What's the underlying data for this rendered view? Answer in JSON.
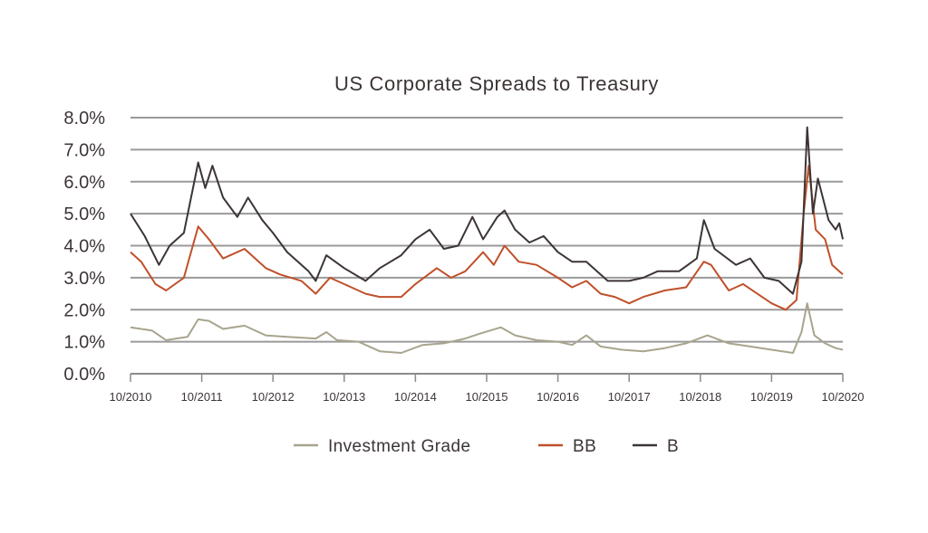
{
  "chart_data": {
    "type": "line",
    "title": "US Corporate Spreads to Treasury",
    "xlabel": "",
    "ylabel": "",
    "x_range": [
      "10/2010",
      "10/2020"
    ],
    "ylim": [
      0,
      8
    ],
    "y_ticks": [
      "0.0%",
      "1.0%",
      "2.0%",
      "3.0%",
      "4.0%",
      "5.0%",
      "6.0%",
      "7.0%",
      "8.0%"
    ],
    "x_ticks": [
      "10/2010",
      "10/2011",
      "10/2012",
      "10/2013",
      "10/2014",
      "10/2015",
      "10/2016",
      "10/2017",
      "10/2018",
      "10/2019",
      "10/2020"
    ],
    "grid": true,
    "legend_position": "bottom",
    "series": [
      {
        "name": "Investment Grade",
        "color": "#a8a58d",
        "points": [
          [
            0.0,
            1.45
          ],
          [
            0.3,
            1.35
          ],
          [
            0.5,
            1.05
          ],
          [
            0.8,
            1.15
          ],
          [
            0.95,
            1.7
          ],
          [
            1.1,
            1.65
          ],
          [
            1.3,
            1.4
          ],
          [
            1.6,
            1.5
          ],
          [
            1.9,
            1.2
          ],
          [
            2.2,
            1.15
          ],
          [
            2.6,
            1.1
          ],
          [
            2.75,
            1.3
          ],
          [
            2.9,
            1.05
          ],
          [
            3.2,
            1.0
          ],
          [
            3.5,
            0.7
          ],
          [
            3.8,
            0.65
          ],
          [
            4.1,
            0.9
          ],
          [
            4.4,
            0.95
          ],
          [
            4.7,
            1.1
          ],
          [
            4.9,
            1.25
          ],
          [
            5.2,
            1.45
          ],
          [
            5.4,
            1.2
          ],
          [
            5.7,
            1.05
          ],
          [
            6.0,
            1.0
          ],
          [
            6.2,
            0.9
          ],
          [
            6.4,
            1.2
          ],
          [
            6.6,
            0.85
          ],
          [
            6.9,
            0.75
          ],
          [
            7.2,
            0.7
          ],
          [
            7.5,
            0.8
          ],
          [
            7.8,
            0.95
          ],
          [
            8.1,
            1.2
          ],
          [
            8.4,
            0.95
          ],
          [
            8.7,
            0.85
          ],
          [
            9.0,
            0.75
          ],
          [
            9.3,
            0.65
          ],
          [
            9.42,
            1.3
          ],
          [
            9.5,
            2.2
          ],
          [
            9.6,
            1.2
          ],
          [
            9.75,
            0.95
          ],
          [
            9.9,
            0.8
          ],
          [
            10.0,
            0.75
          ]
        ]
      },
      {
        "name": "BB",
        "color": "#c0502a",
        "points": [
          [
            0.0,
            3.8
          ],
          [
            0.15,
            3.5
          ],
          [
            0.35,
            2.8
          ],
          [
            0.5,
            2.6
          ],
          [
            0.75,
            3.0
          ],
          [
            0.95,
            4.6
          ],
          [
            1.1,
            4.2
          ],
          [
            1.3,
            3.6
          ],
          [
            1.6,
            3.9
          ],
          [
            1.9,
            3.3
          ],
          [
            2.1,
            3.1
          ],
          [
            2.4,
            2.9
          ],
          [
            2.6,
            2.5
          ],
          [
            2.8,
            3.0
          ],
          [
            3.1,
            2.7
          ],
          [
            3.3,
            2.5
          ],
          [
            3.5,
            2.4
          ],
          [
            3.8,
            2.4
          ],
          [
            4.0,
            2.8
          ],
          [
            4.3,
            3.3
          ],
          [
            4.5,
            3.0
          ],
          [
            4.7,
            3.2
          ],
          [
            4.95,
            3.8
          ],
          [
            5.1,
            3.4
          ],
          [
            5.25,
            4.0
          ],
          [
            5.45,
            3.5
          ],
          [
            5.7,
            3.4
          ],
          [
            6.0,
            3.0
          ],
          [
            6.2,
            2.7
          ],
          [
            6.4,
            2.9
          ],
          [
            6.6,
            2.5
          ],
          [
            6.8,
            2.4
          ],
          [
            7.0,
            2.2
          ],
          [
            7.2,
            2.4
          ],
          [
            7.5,
            2.6
          ],
          [
            7.8,
            2.7
          ],
          [
            8.05,
            3.5
          ],
          [
            8.15,
            3.4
          ],
          [
            8.4,
            2.6
          ],
          [
            8.6,
            2.8
          ],
          [
            8.8,
            2.5
          ],
          [
            9.0,
            2.2
          ],
          [
            9.2,
            2.0
          ],
          [
            9.35,
            2.3
          ],
          [
            9.45,
            5.0
          ],
          [
            9.52,
            6.5
          ],
          [
            9.62,
            4.5
          ],
          [
            9.75,
            4.2
          ],
          [
            9.85,
            3.4
          ],
          [
            10.0,
            3.1
          ]
        ]
      },
      {
        "name": "B",
        "color": "#3d3535",
        "points": [
          [
            0.0,
            5.0
          ],
          [
            0.2,
            4.3
          ],
          [
            0.4,
            3.4
          ],
          [
            0.55,
            4.0
          ],
          [
            0.75,
            4.4
          ],
          [
            0.95,
            6.6
          ],
          [
            1.05,
            5.8
          ],
          [
            1.15,
            6.5
          ],
          [
            1.3,
            5.5
          ],
          [
            1.5,
            4.9
          ],
          [
            1.65,
            5.5
          ],
          [
            1.85,
            4.8
          ],
          [
            2.0,
            4.4
          ],
          [
            2.2,
            3.8
          ],
          [
            2.5,
            3.2
          ],
          [
            2.6,
            2.9
          ],
          [
            2.75,
            3.7
          ],
          [
            3.0,
            3.3
          ],
          [
            3.3,
            2.9
          ],
          [
            3.5,
            3.3
          ],
          [
            3.8,
            3.7
          ],
          [
            4.0,
            4.2
          ],
          [
            4.2,
            4.5
          ],
          [
            4.4,
            3.9
          ],
          [
            4.6,
            4.0
          ],
          [
            4.8,
            4.9
          ],
          [
            4.95,
            4.2
          ],
          [
            5.15,
            4.9
          ],
          [
            5.25,
            5.1
          ],
          [
            5.4,
            4.5
          ],
          [
            5.6,
            4.1
          ],
          [
            5.8,
            4.3
          ],
          [
            6.0,
            3.8
          ],
          [
            6.2,
            3.5
          ],
          [
            6.4,
            3.5
          ],
          [
            6.7,
            2.9
          ],
          [
            7.0,
            2.9
          ],
          [
            7.2,
            3.0
          ],
          [
            7.4,
            3.2
          ],
          [
            7.7,
            3.2
          ],
          [
            7.95,
            3.6
          ],
          [
            8.05,
            4.8
          ],
          [
            8.2,
            3.9
          ],
          [
            8.5,
            3.4
          ],
          [
            8.7,
            3.6
          ],
          [
            8.9,
            3.0
          ],
          [
            9.1,
            2.9
          ],
          [
            9.3,
            2.5
          ],
          [
            9.42,
            3.5
          ],
          [
            9.5,
            7.7
          ],
          [
            9.58,
            5.0
          ],
          [
            9.65,
            6.1
          ],
          [
            9.8,
            4.8
          ],
          [
            9.9,
            4.5
          ],
          [
            9.95,
            4.7
          ],
          [
            10.0,
            4.2
          ]
        ]
      }
    ]
  }
}
